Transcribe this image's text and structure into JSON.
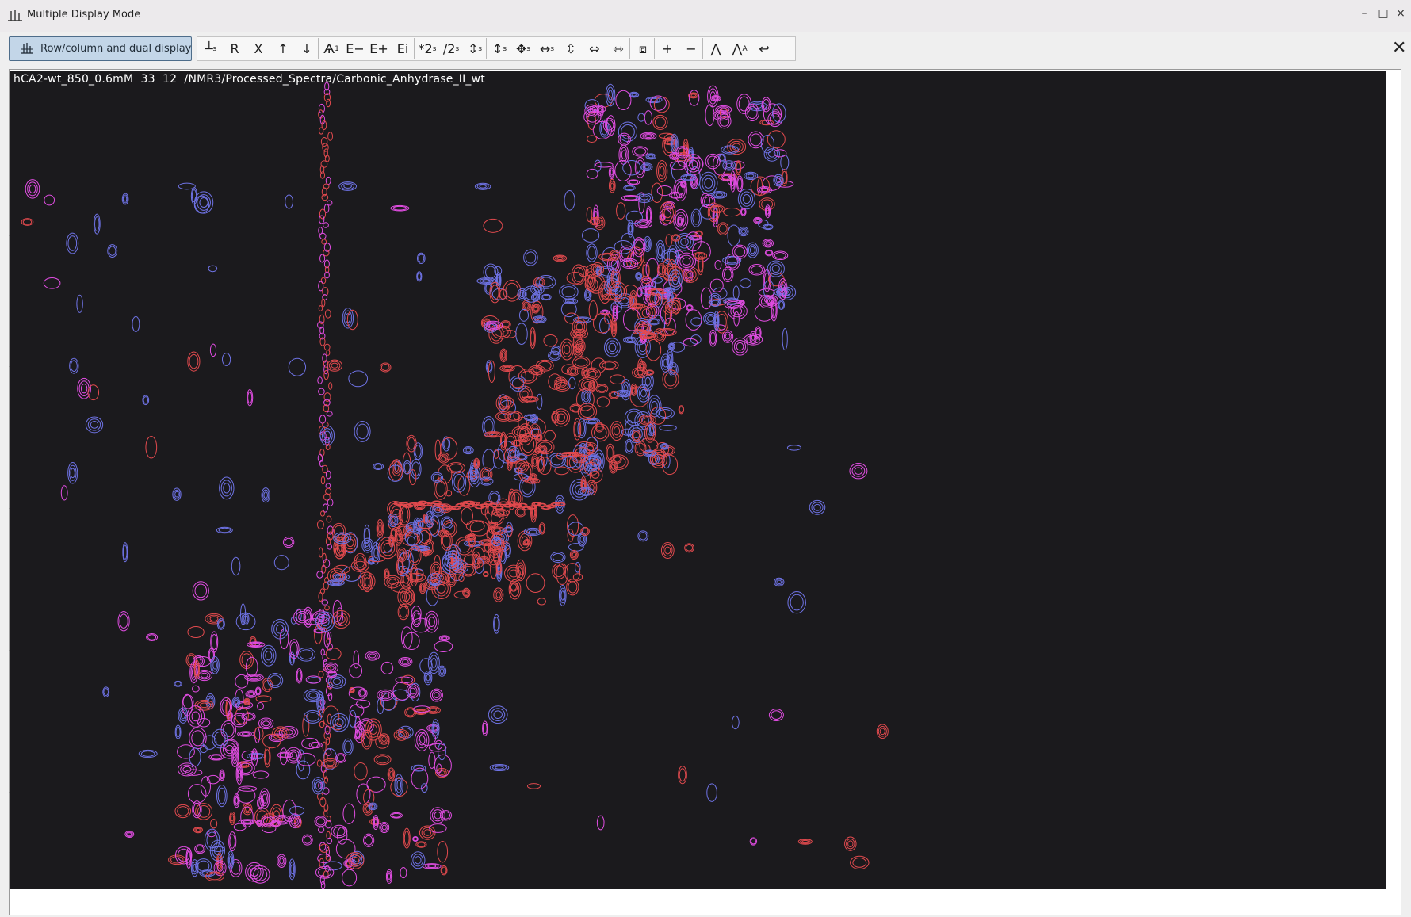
{
  "window": {
    "title": "Multiple Display Mode",
    "controls": {
      "minimize": "–",
      "maximize": "□",
      "close": "×"
    }
  },
  "toolbar": {
    "mode_button_label": "Row/column and dual display",
    "tools": [
      {
        "name": "slice-tool",
        "glyph": "┴",
        "sub": "s"
      },
      {
        "name": "reset-tool",
        "glyph": "R",
        "sub": ""
      },
      {
        "name": "cross-tool",
        "glyph": "X",
        "sub": ""
      },
      {
        "name": "up-arrow-tool",
        "glyph": "↑",
        "sub": ""
      },
      {
        "name": "down-arrow-tool",
        "glyph": "↓",
        "sub": ""
      },
      {
        "name": "stack-tool",
        "glyph": "Ѧ",
        "sub": "1"
      },
      {
        "name": "expand-minus-tool",
        "glyph": "E−",
        "sub": ""
      },
      {
        "name": "expand-plus-tool",
        "glyph": "E+",
        "sub": ""
      },
      {
        "name": "expand-info-tool",
        "glyph": "Ei",
        "sub": ""
      },
      {
        "name": "multiply-scale-tool",
        "glyph": "*2",
        "sub": "s"
      },
      {
        "name": "divide-scale-tool",
        "glyph": "/2",
        "sub": "s"
      },
      {
        "name": "shift-scale-tool",
        "glyph": "⇕",
        "sub": "s"
      },
      {
        "name": "vertical-scale-tool",
        "glyph": "↕",
        "sub": "s"
      },
      {
        "name": "move-tool",
        "glyph": "✥",
        "sub": "s"
      },
      {
        "name": "horizontal-scale-tool",
        "glyph": "↔",
        "sub": "s"
      },
      {
        "name": "vertical-expand-tool",
        "glyph": "⇳",
        "sub": ""
      },
      {
        "name": "horizontal-expand-tool",
        "glyph": "⇔",
        "sub": ""
      },
      {
        "name": "both-expand-tool",
        "glyph": "⇿",
        "sub": ""
      },
      {
        "name": "fit-tool",
        "glyph": "⧈",
        "sub": ""
      },
      {
        "name": "zoom-in-tool",
        "glyph": "+",
        "sub": ""
      },
      {
        "name": "zoom-out-tool",
        "glyph": "−",
        "sub": ""
      },
      {
        "name": "peak-tool",
        "glyph": "⋀",
        "sub": ""
      },
      {
        "name": "peak-label-tool",
        "glyph": "⋀",
        "sub": "A"
      },
      {
        "name": "return-tool",
        "glyph": "↩",
        "sub": ""
      }
    ],
    "close_label": "✕"
  },
  "spectrum": {
    "label": "hCA2-wt_850_0.6mM  33  12  /NMR3/Processed_Spectra/Carbonic_Anhydrase_II_wt",
    "background_color": "#1b1a1d",
    "contour_colors": {
      "spectrum_a": "#e34a4e",
      "spectrum_b": "#e24de3",
      "spectrum_c": "#6f73e6"
    }
  }
}
